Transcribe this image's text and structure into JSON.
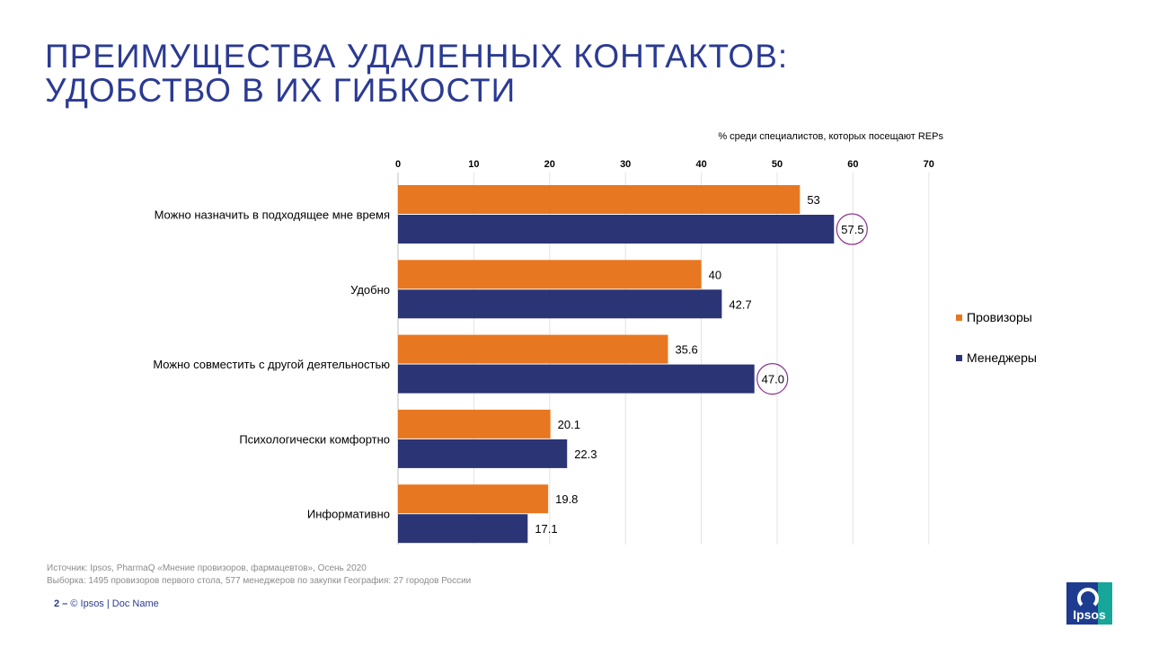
{
  "title": {
    "line1": "ПРЕИМУЩЕСТВА УДАЛЕННЫХ КОНТАКТОВ:",
    "line2": "УДОБСТВО В ИХ ГИБКОСТИ"
  },
  "chart_data": {
    "type": "bar",
    "orientation": "horizontal",
    "axis_title": "% среди специалистов, которых посещают REPs",
    "xlim": [
      0,
      70
    ],
    "ticks": [
      0,
      10,
      20,
      30,
      40,
      50,
      60,
      70
    ],
    "tick_position": "top",
    "grid": true,
    "legend_position": "right",
    "categories": [
      "Можно назначить в подходящее мне время",
      "Удобно",
      "Можно совместить с другой деятельностью",
      "Психологически комфортно",
      "Информативно"
    ],
    "series": [
      {
        "name": "Провизоры",
        "color": "#e87722",
        "values": [
          53,
          40,
          35.6,
          20.1,
          19.8
        ],
        "labels": [
          "53",
          "40",
          "35.6",
          "20.1",
          "19.8"
        ],
        "highlighted": [
          false,
          false,
          false,
          false,
          false
        ]
      },
      {
        "name": "Менеджеры",
        "color": "#2b3475",
        "values": [
          57.5,
          42.7,
          47.0,
          22.3,
          17.1
        ],
        "labels": [
          "57.5",
          "42.7",
          "47.0",
          "22.3",
          "17.1"
        ],
        "highlighted": [
          true,
          false,
          true,
          false,
          false
        ]
      }
    ],
    "highlight_color": "#8b2f8e"
  },
  "legend": {
    "items": [
      {
        "label": "Провизоры",
        "color": "#e87722"
      },
      {
        "label": "Менеджеры",
        "color": "#2b3475"
      }
    ]
  },
  "source": {
    "line1": "Источник: Ipsos, PharmaQ «Мнение провизоров, фармацевтов», Осень 2020",
    "line2": "Выборка: 1495 провизоров первого стола, 577 менеджеров по закупки География: 27 городов России"
  },
  "footer": {
    "page": "2 –",
    "text": "© Ipsos | Doc Name"
  },
  "logo": {
    "text": "Ipsos"
  }
}
